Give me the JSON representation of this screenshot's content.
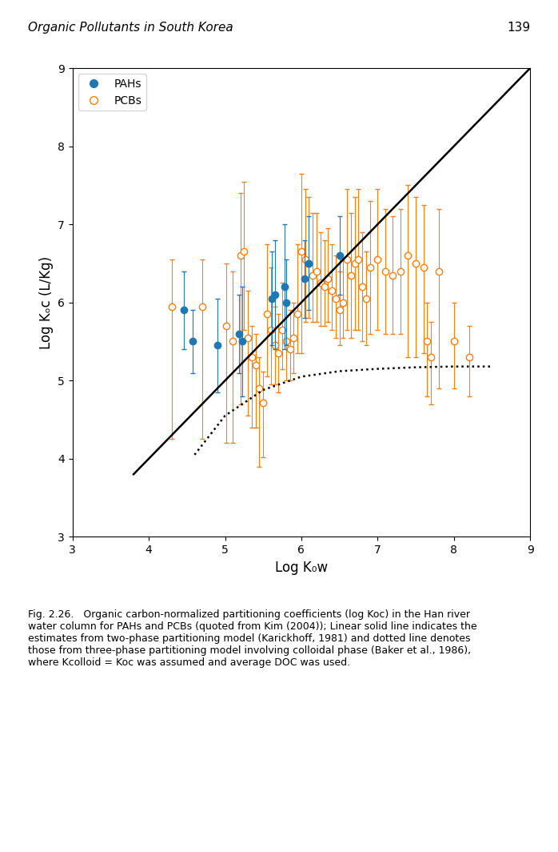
{
  "chart_data": {
    "type": "scatter",
    "title": "Organic Pollutants in South Korea",
    "annotations": [
      "139",
      "Fig. 2.26.   Organic carbon-normalized partitioning coefficients (log Koc) in the Han river\nwater column for PAHs and PCBs (quoted from Kim (2004)); Linear solid line indicates the\nestimates from two-phase partitioning model (Karickhoff, 1981) and dotted line denotes\nthose from three-phase partitioning model involving colloidal phase (Baker et al., 1986),\nwhere Kcolloid = Koc was assumed and average DOC was used."
    ],
    "x_label": "Log K₀w",
    "y_label": "Log Kₒc (L/Kg)",
    "xlim": [
      3,
      9
    ],
    "ylim": [
      3,
      9
    ],
    "xticks": [
      3,
      4,
      5,
      6,
      7,
      8,
      9
    ],
    "yticks": [
      3,
      4,
      5,
      6,
      7,
      8,
      9
    ],
    "grid": false,
    "legend": "upper left",
    "series": [
      {
        "name": "PAHs",
        "type": "scatter",
        "marker": "circle",
        "x": [
          4.46,
          4.57,
          4.9,
          5.18,
          5.22,
          5.61,
          5.65,
          5.78,
          5.8,
          6.04,
          6.1,
          6.5
        ],
        "values": [
          5.9,
          5.5,
          5.45,
          5.6,
          5.5,
          6.05,
          6.1,
          6.2,
          6.0,
          6.3,
          6.5,
          6.6
        ],
        "yerr_low": [
          0.5,
          0.4,
          0.6,
          0.5,
          0.7,
          0.6,
          0.7,
          0.8,
          0.55,
          0.5,
          0.6,
          0.5
        ],
        "yerr_high": [
          0.5,
          0.4,
          0.6,
          0.5,
          0.7,
          0.6,
          0.7,
          0.8,
          0.55,
          0.5,
          0.6,
          0.5
        ]
      },
      {
        "name": "PCBs",
        "type": "scatter",
        "marker": "open circle",
        "x": [
          4.3,
          4.7,
          5.02,
          5.1,
          5.2,
          5.25,
          5.3,
          5.35,
          5.4,
          5.45,
          5.5,
          5.55,
          5.6,
          5.65,
          5.7,
          5.75,
          5.8,
          5.85,
          5.9,
          5.95,
          6.0,
          6.05,
          6.1,
          6.15,
          6.2,
          6.25,
          6.3,
          6.35,
          6.4,
          6.45,
          6.5,
          6.55,
          6.6,
          6.65,
          6.7,
          6.75,
          6.8,
          6.85,
          6.9,
          7.0,
          7.1,
          7.2,
          7.3,
          7.4,
          7.5,
          7.6,
          7.65,
          7.7,
          7.8,
          8.0,
          8.2
        ],
        "values": [
          5.95,
          5.95,
          5.7,
          5.5,
          6.6,
          6.65,
          5.55,
          5.3,
          5.2,
          4.9,
          4.72,
          5.85,
          5.65,
          5.45,
          5.35,
          5.65,
          5.5,
          5.4,
          5.55,
          5.85,
          6.65,
          6.55,
          6.5,
          6.35,
          6.4,
          6.25,
          6.2,
          6.3,
          6.15,
          6.05,
          5.9,
          6.0,
          6.55,
          6.35,
          6.5,
          6.55,
          6.2,
          6.05,
          6.45,
          6.55,
          6.4,
          6.35,
          6.4,
          6.6,
          6.5,
          6.45,
          5.5,
          5.3,
          6.4,
          5.5,
          5.3
        ],
        "yerr_low": [
          1.7,
          1.7,
          1.5,
          1.3,
          1.9,
          1.0,
          1.0,
          0.9,
          0.8,
          1.0,
          0.7,
          0.8,
          0.7,
          0.5,
          0.5,
          0.5,
          0.5,
          0.4,
          0.45,
          0.5,
          1.3,
          0.8,
          0.7,
          0.6,
          0.65,
          0.55,
          0.5,
          0.55,
          0.5,
          0.5,
          0.45,
          0.45,
          0.9,
          0.8,
          0.85,
          0.9,
          0.7,
          0.6,
          0.85,
          0.9,
          0.8,
          0.75,
          0.8,
          1.3,
          1.2,
          1.1,
          0.7,
          0.6,
          1.5,
          0.6,
          0.5
        ],
        "yerr_high": [
          0.6,
          0.6,
          0.8,
          0.9,
          0.8,
          0.9,
          0.6,
          0.4,
          0.4,
          0.4,
          0.4,
          0.9,
          0.8,
          0.5,
          0.5,
          0.6,
          0.7,
          0.5,
          0.45,
          0.9,
          1.0,
          0.9,
          0.85,
          0.8,
          0.75,
          0.65,
          0.6,
          0.65,
          0.6,
          0.55,
          0.5,
          0.55,
          0.9,
          0.8,
          0.85,
          0.9,
          0.7,
          0.6,
          0.85,
          0.9,
          0.8,
          0.75,
          0.8,
          0.9,
          0.85,
          0.8,
          0.5,
          0.45,
          0.8,
          0.5,
          0.4
        ]
      },
      {
        "type": "line",
        "line_style": "solid",
        "color": "#000000",
        "x": [
          3.8,
          9.0
        ],
        "values": [
          3.8,
          9.0
        ]
      },
      {
        "type": "line",
        "line_style": "dotted",
        "color": "#000000",
        "x": [
          4.6,
          5.0,
          5.5,
          6.0,
          6.5,
          7.0,
          7.5,
          8.0,
          8.5
        ],
        "values": [
          4.05,
          4.55,
          4.88,
          5.05,
          5.12,
          5.15,
          5.17,
          5.18,
          5.18
        ]
      }
    ]
  }
}
